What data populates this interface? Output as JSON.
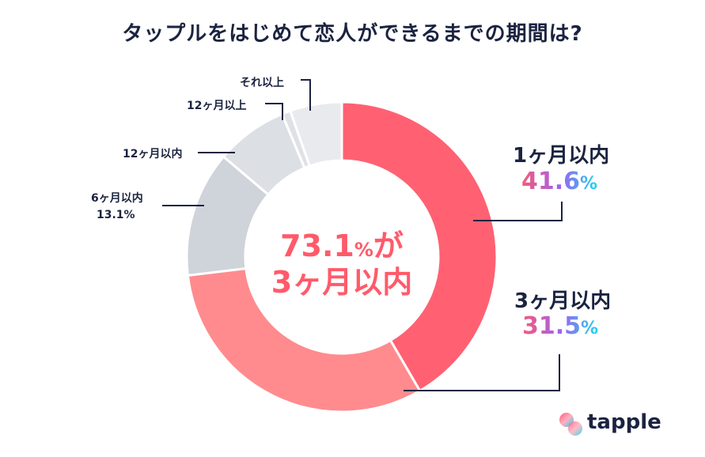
{
  "chart_data": {
    "type": "pie",
    "donut": true,
    "title": "タップルをはじめて恋人ができるまでの期間は?",
    "categories": [
      "1ヶ月以内",
      "3ヶ月以内",
      "6ヶ月以内",
      "12ヶ月以内",
      "12ヶ月以上",
      "それ以上"
    ],
    "values": [
      41.6,
      31.5,
      13.1,
      7.5,
      0.9,
      5.4
    ],
    "colors": [
      "#ff6172",
      "#ff8b8e",
      "#cfd3da",
      "#dcdfe4",
      "#dfe1e6",
      "#e9eaed"
    ],
    "data_labels": {
      "1ヶ月以内": "41.6",
      "3ヶ月以内": "31.5",
      "6ヶ月以内": "13.1%"
    },
    "percent_sign": "%",
    "center_text": {
      "value": "73.1",
      "unit": "%",
      "suffix": "が",
      "line2": "3ヶ月以内"
    }
  },
  "brand": {
    "name": "tapple"
  }
}
